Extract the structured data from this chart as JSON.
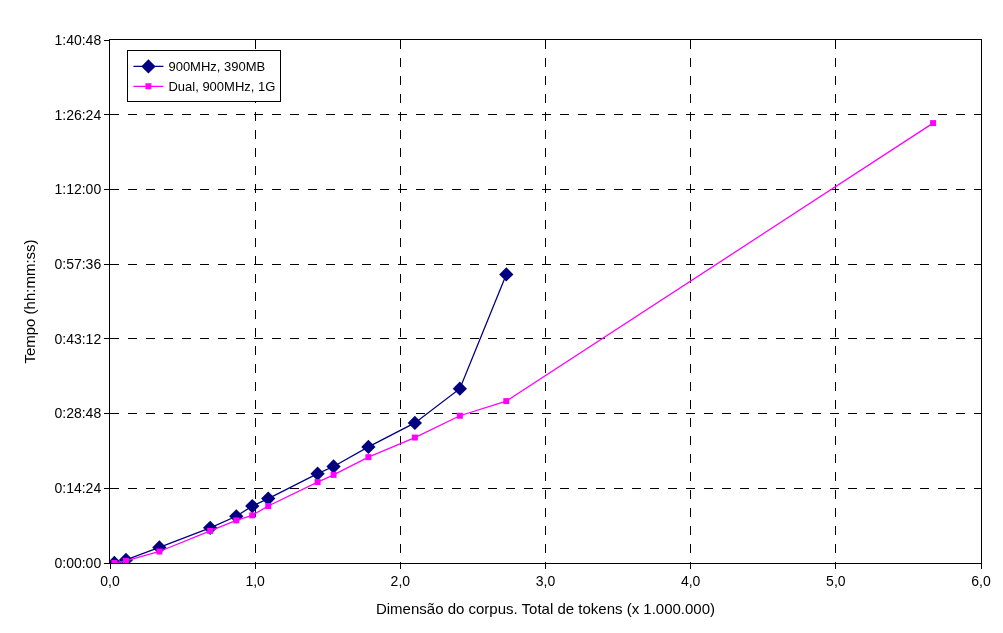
{
  "chart_data": {
    "type": "line",
    "xlabel": "Dimensão do corpus. Total de tokens (x 1.000.000)",
    "ylabel": "Tempo (hh:mm:ss)",
    "xlim": [
      0,
      6
    ],
    "xticks": [
      {
        "value": 0,
        "label": "0,0"
      },
      {
        "value": 1,
        "label": "1,0"
      },
      {
        "value": 2,
        "label": "2,0"
      },
      {
        "value": 3,
        "label": "3,0"
      },
      {
        "value": 4,
        "label": "4,0"
      },
      {
        "value": 5,
        "label": "5,0"
      },
      {
        "value": 6,
        "label": "6,0"
      }
    ],
    "ylim": [
      0,
      1.68
    ],
    "yticks": [
      {
        "value": 0,
        "label": "0:00:00"
      },
      {
        "value": 0.24,
        "label": "0:14:24"
      },
      {
        "value": 0.48,
        "label": "0:28:48"
      },
      {
        "value": 0.72,
        "label": "0:43:12"
      },
      {
        "value": 0.96,
        "label": "0:57:36"
      },
      {
        "value": 1.2,
        "label": "1:12:00"
      },
      {
        "value": 1.44,
        "label": "1:26:24"
      },
      {
        "value": 1.68,
        "label": "1:40:48"
      }
    ],
    "grid": true,
    "line_style": "solid",
    "legend": "top left",
    "series": [
      {
        "name": "900MHz, 390MB",
        "color": "#000080",
        "marker": "diamond",
        "x": [
          0.03,
          0.11,
          0.34,
          0.69,
          0.87,
          0.98,
          1.09,
          1.43,
          1.54,
          1.78,
          2.1,
          2.41,
          2.73
        ],
        "values": [
          0,
          0.01,
          0.05,
          0.113,
          0.15,
          0.183,
          0.207,
          0.287,
          0.31,
          0.373,
          0.45,
          0.56,
          0.927
        ]
      },
      {
        "name": "Dual, 900MHz, 1G",
        "color": "#ff00ff",
        "marker": "square",
        "x": [
          0.03,
          0.11,
          0.34,
          0.69,
          0.87,
          0.98,
          1.09,
          1.43,
          1.54,
          1.78,
          2.1,
          2.41,
          2.73,
          5.67
        ],
        "values": [
          0,
          0.007,
          0.037,
          0.103,
          0.137,
          0.153,
          0.183,
          0.26,
          0.283,
          0.34,
          0.403,
          0.473,
          0.52,
          1.413
        ]
      }
    ]
  }
}
